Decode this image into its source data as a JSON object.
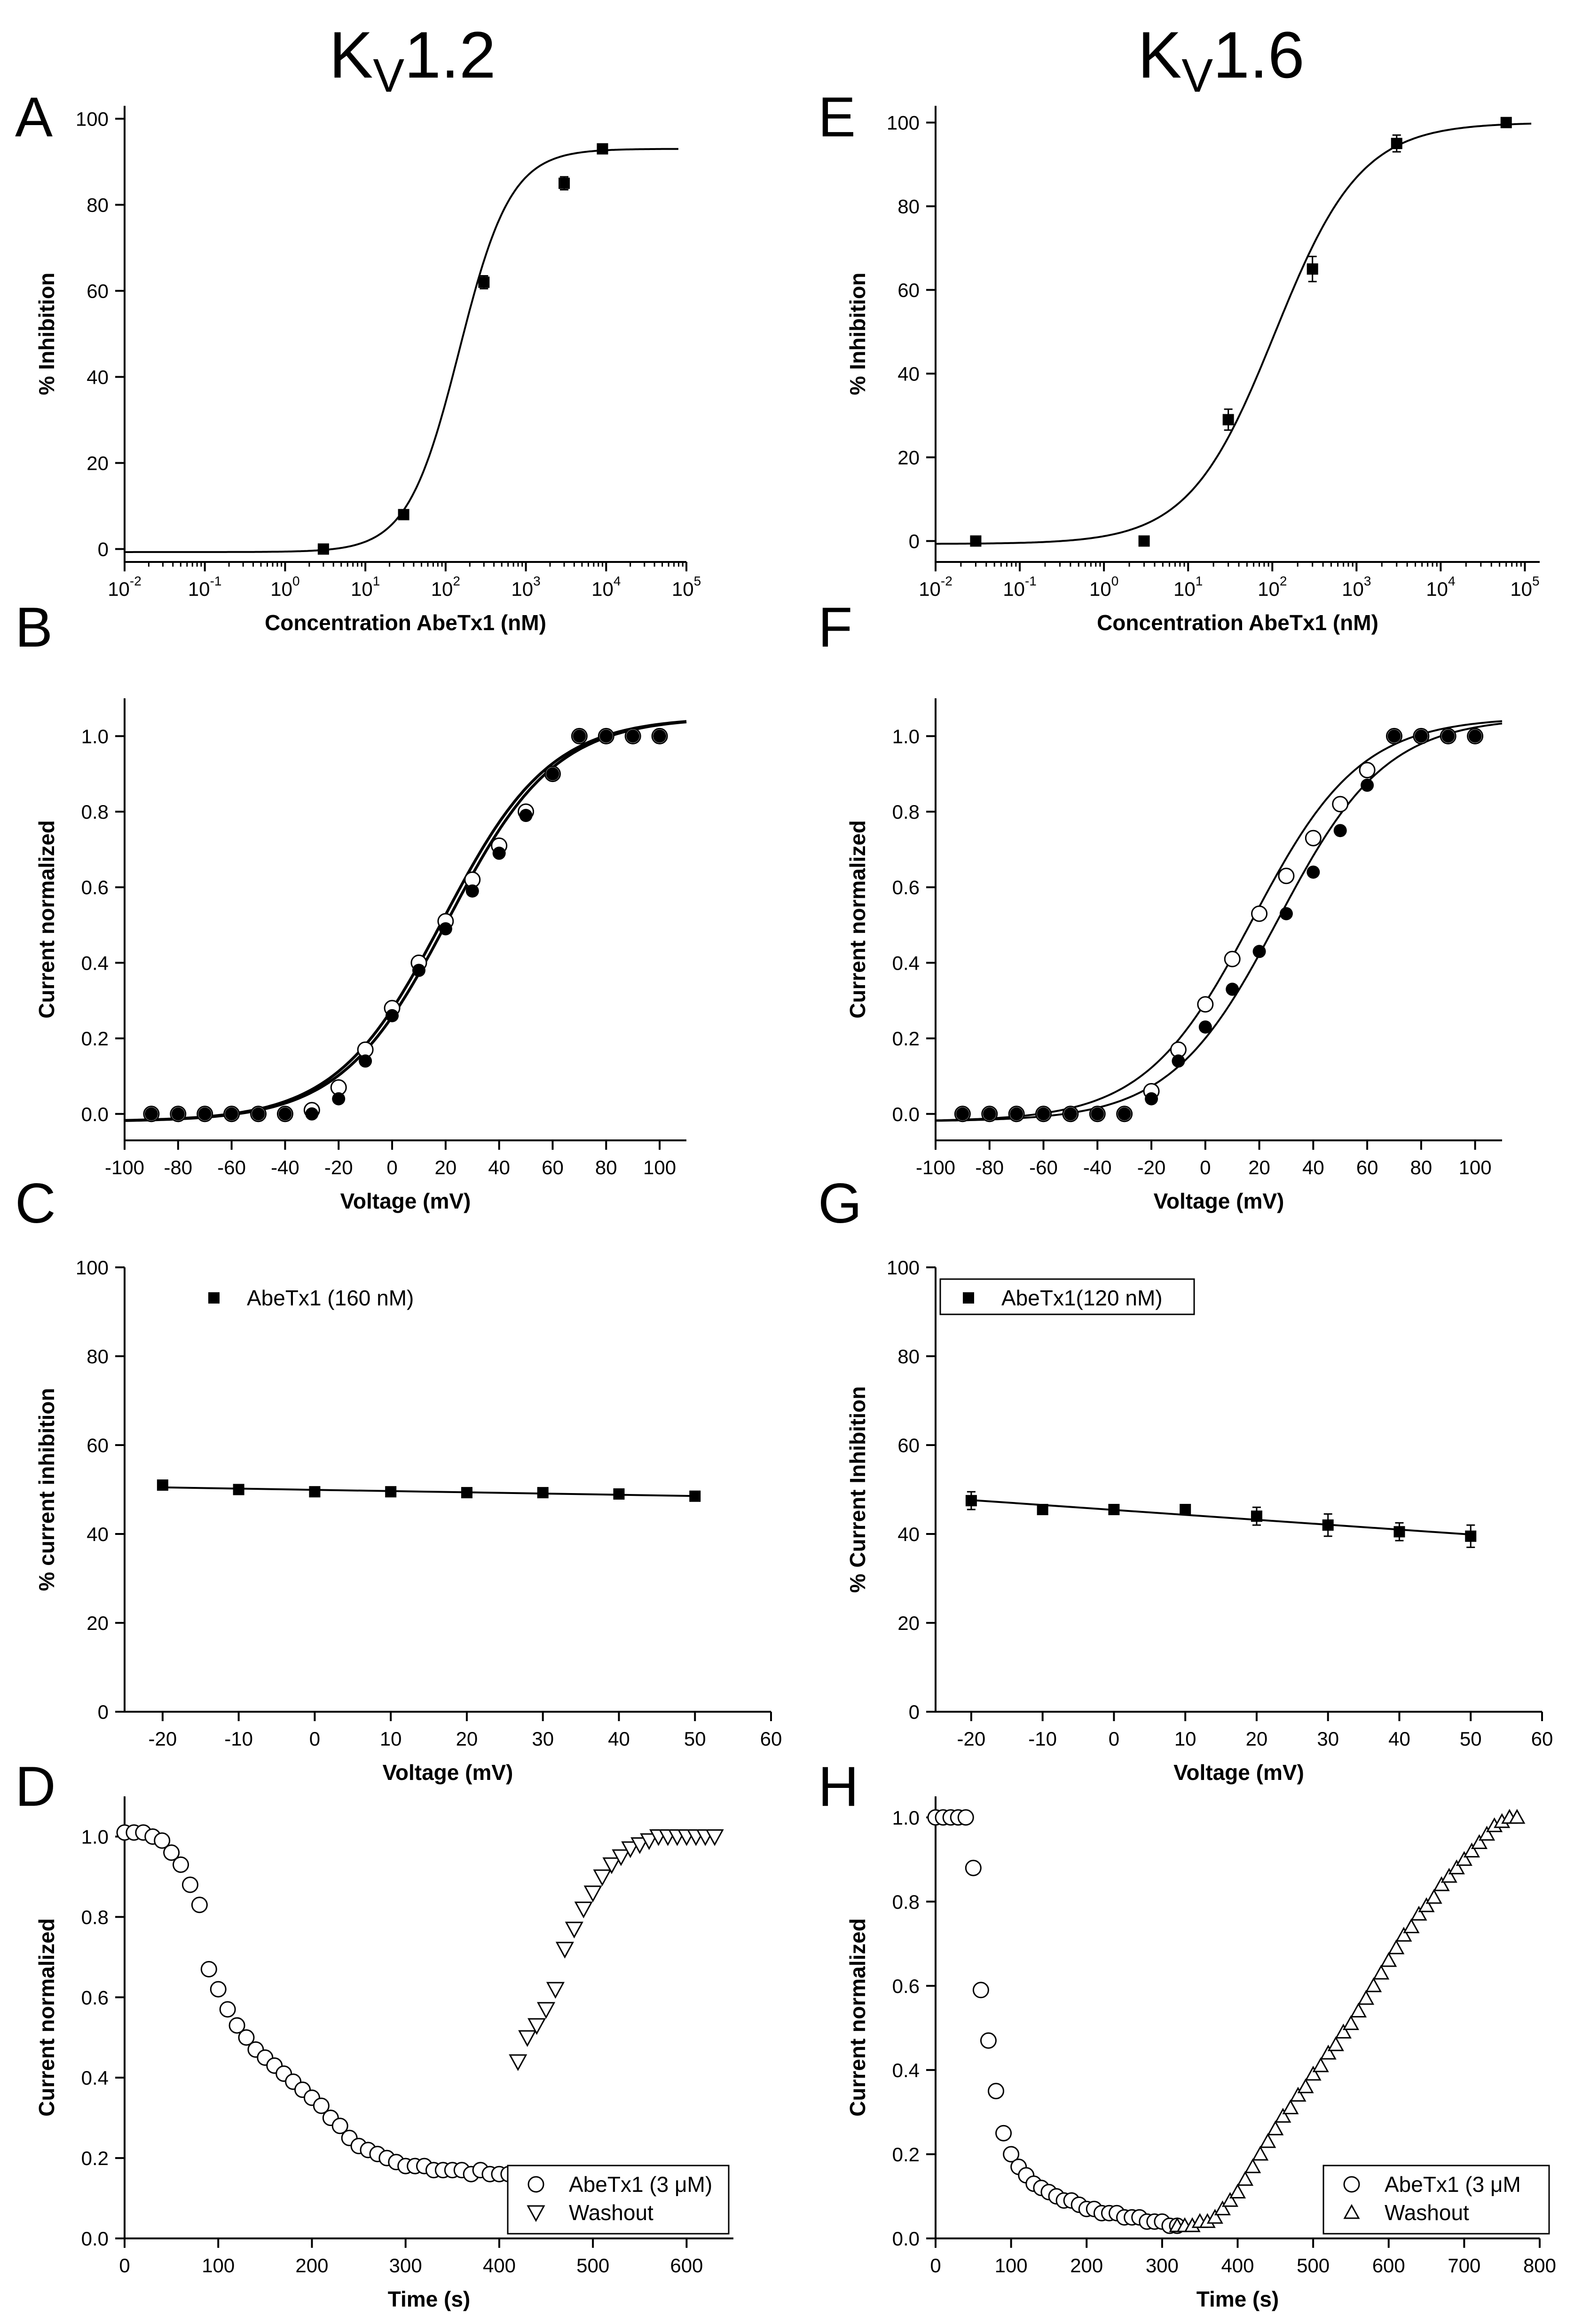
{
  "columns": [
    {
      "title": "K",
      "sub": "V",
      "suffix": "1.2"
    },
    {
      "title": "K",
      "sub": "V",
      "suffix": "1.6"
    }
  ],
  "colors": {
    "ink": "#000000",
    "background": "#ffffff"
  },
  "chart_data": [
    {
      "panel": "A",
      "type": "scatter",
      "xscale": "log",
      "xlabel": "Concentration AbeTx1 (nM)",
      "ylabel": "% Inhibition",
      "xlim": [
        0.01,
        100000
      ],
      "ylim": [
        -3,
        103
      ],
      "xticks": [
        {
          "b": "10",
          "e": "-2"
        },
        {
          "b": "10",
          "e": "-1"
        },
        {
          "b": "10",
          "e": "0"
        },
        {
          "b": "10",
          "e": "1"
        },
        {
          "b": "10",
          "e": "2"
        },
        {
          "b": "10",
          "e": "3"
        },
        {
          "b": "10",
          "e": "4"
        },
        {
          "b": "10",
          "e": "5"
        }
      ],
      "yticks": [
        "0",
        "20",
        "40",
        "60",
        "80",
        "100"
      ],
      "series": [
        {
          "name": "data",
          "marker": "filled-square",
          "fit": "hill",
          "x": [
            3,
            30,
            300,
            3000,
            9000
          ],
          "y": [
            0,
            8,
            62,
            85,
            93
          ],
          "err": [
            0.5,
            0.8,
            1.5,
            1.5,
            0.5
          ]
        }
      ]
    },
    {
      "panel": "B",
      "type": "scatter",
      "xlabel": "Voltage (mV)",
      "ylabel": "Current normalized",
      "xlim": [
        -100,
        110
      ],
      "ylim": [
        -0.07,
        1.1
      ],
      "xticks": [
        "-100",
        "-80",
        "-60",
        "-40",
        "-20",
        "0",
        "20",
        "40",
        "60",
        "80",
        "100"
      ],
      "yticks": [
        "0.0",
        "0.2",
        "0.4",
        "0.6",
        "0.8",
        "1.0"
      ],
      "series": [
        {
          "name": "control",
          "marker": "open-circle",
          "fit": "boltzmann",
          "x": [
            -90,
            -80,
            -70,
            -60,
            -50,
            -40,
            -30,
            -20,
            -10,
            0,
            10,
            20,
            30,
            40,
            50,
            60,
            70,
            80,
            90,
            100
          ],
          "y": [
            0.0,
            0.0,
            0.0,
            0.0,
            0.0,
            0.0,
            0.01,
            0.07,
            0.17,
            0.28,
            0.4,
            0.51,
            0.62,
            0.71,
            0.8,
            0.9,
            1.0,
            1.0,
            1.0,
            1.0
          ]
        },
        {
          "name": "toxin",
          "marker": "filled-circle",
          "fit": "boltzmann",
          "x": [
            -90,
            -80,
            -70,
            -60,
            -50,
            -40,
            -30,
            -20,
            -10,
            0,
            10,
            20,
            30,
            40,
            50,
            60,
            70,
            80,
            90,
            100
          ],
          "y": [
            0.0,
            0.0,
            0.0,
            0.0,
            0.0,
            0.0,
            0.0,
            0.04,
            0.14,
            0.26,
            0.38,
            0.49,
            0.59,
            0.69,
            0.79,
            0.9,
            1.0,
            1.0,
            1.0,
            1.0
          ]
        }
      ]
    },
    {
      "panel": "C",
      "type": "scatter",
      "xlabel": "Voltage (mV)",
      "ylabel": "% current inhibition",
      "xlim": [
        -25,
        60
      ],
      "ylim": [
        0,
        100
      ],
      "xticks": [
        "-20",
        "-10",
        "0",
        "10",
        "20",
        "30",
        "40",
        "50",
        "60"
      ],
      "yticks": [
        "0",
        "20",
        "40",
        "60",
        "80",
        "100"
      ],
      "legend": {
        "position": "top-left",
        "boxed": false,
        "entries": [
          "AbeTx1 (160 nM)"
        ]
      },
      "series": [
        {
          "name": "AbeTx1 (160 nM)",
          "marker": "filled-square",
          "fit": "linear",
          "x": [
            -20,
            -10,
            0,
            10,
            20,
            30,
            40,
            50
          ],
          "y": [
            51,
            50,
            49.5,
            49.5,
            49.3,
            49.3,
            49,
            48.5
          ]
        }
      ]
    },
    {
      "panel": "D",
      "type": "scatter",
      "xlabel": "Time (s)",
      "ylabel": "Current normalized",
      "xlim": [
        0,
        650
      ],
      "ylim": [
        0,
        1.1
      ],
      "xticks": [
        "0",
        "100",
        "200",
        "300",
        "400",
        "500",
        "600"
      ],
      "yticks": [
        "0.0",
        "0.2",
        "0.4",
        "0.6",
        "0.8",
        "1.0"
      ],
      "legend": {
        "position": "bottom-right",
        "boxed": true,
        "entries": [
          "AbeTx1 (3 μM)",
          "Washout"
        ]
      },
      "series": [
        {
          "name": "AbeTx1 (3 μM)",
          "marker": "open-circle",
          "x": [
            0,
            10,
            20,
            30,
            40,
            50,
            60,
            70,
            80,
            90,
            100,
            110,
            120,
            130,
            140,
            150,
            160,
            170,
            180,
            190,
            200,
            210,
            220,
            230,
            240,
            250,
            260,
            270,
            280,
            290,
            300,
            310,
            320,
            330,
            340,
            350,
            360,
            370,
            380,
            390,
            400,
            410
          ],
          "y": [
            1.01,
            1.01,
            1.01,
            1.0,
            0.99,
            0.96,
            0.93,
            0.88,
            0.83,
            0.67,
            0.62,
            0.57,
            0.53,
            0.5,
            0.47,
            0.45,
            0.43,
            0.41,
            0.39,
            0.37,
            0.35,
            0.33,
            0.3,
            0.28,
            0.25,
            0.23,
            0.22,
            0.21,
            0.2,
            0.19,
            0.18,
            0.18,
            0.18,
            0.17,
            0.17,
            0.17,
            0.17,
            0.16,
            0.17,
            0.16,
            0.16,
            0.16
          ]
        },
        {
          "name": "Washout",
          "marker": "open-triangle-down",
          "x": [
            420,
            430,
            440,
            450,
            460,
            470,
            480,
            490,
            500,
            510,
            520,
            530,
            540,
            550,
            560,
            570,
            580,
            590,
            600,
            610,
            620,
            630
          ],
          "y": [
            0.44,
            0.5,
            0.53,
            0.57,
            0.62,
            0.72,
            0.77,
            0.82,
            0.86,
            0.9,
            0.93,
            0.95,
            0.97,
            0.98,
            0.99,
            1.0,
            1.0,
            1.0,
            1.0,
            1.0,
            1.0,
            1.0
          ]
        }
      ]
    },
    {
      "panel": "E",
      "type": "scatter",
      "xscale": "log",
      "xlabel": "Concentration AbeTx1 (nM)",
      "ylabel": "% Inhibition",
      "xlim": [
        0.01,
        150000
      ],
      "ylim": [
        -5,
        104
      ],
      "xticks": [
        {
          "b": "10",
          "e": "-2"
        },
        {
          "b": "10",
          "e": "-1"
        },
        {
          "b": "10",
          "e": "0"
        },
        {
          "b": "10",
          "e": "1"
        },
        {
          "b": "10",
          "e": "2"
        },
        {
          "b": "10",
          "e": "3"
        },
        {
          "b": "10",
          "e": "4"
        },
        {
          "b": "10",
          "e": "5"
        }
      ],
      "yticks": [
        "0",
        "20",
        "40",
        "60",
        "80",
        "100"
      ],
      "series": [
        {
          "name": "data",
          "marker": "filled-square",
          "fit": "hill",
          "x": [
            0.03,
            3,
            30,
            300,
            3000,
            60000
          ],
          "y": [
            0,
            0,
            29,
            65,
            95,
            100
          ],
          "err": [
            0.5,
            0.5,
            2.5,
            3.0,
            2.0,
            0.5
          ]
        }
      ]
    },
    {
      "panel": "F",
      "type": "scatter",
      "xlabel": "Voltage (mV)",
      "ylabel": "Current normalized",
      "xlim": [
        -100,
        110
      ],
      "ylim": [
        -0.07,
        1.1
      ],
      "xticks": [
        "-100",
        "-80",
        "-60",
        "-40",
        "-20",
        "0",
        "20",
        "40",
        "60",
        "80",
        "100"
      ],
      "yticks": [
        "0.0",
        "0.2",
        "0.4",
        "0.6",
        "0.8",
        "1.0"
      ],
      "series": [
        {
          "name": "control",
          "marker": "open-circle",
          "fit": "boltzmann",
          "x": [
            -90,
            -80,
            -70,
            -60,
            -50,
            -40,
            -30,
            -20,
            -10,
            0,
            10,
            20,
            30,
            40,
            50,
            60,
            70,
            80,
            90,
            100
          ],
          "y": [
            0.0,
            0.0,
            0.0,
            0.0,
            0.0,
            0.0,
            0.0,
            0.06,
            0.17,
            0.29,
            0.41,
            0.53,
            0.63,
            0.73,
            0.82,
            0.91,
            1.0,
            1.0,
            1.0,
            1.0
          ]
        },
        {
          "name": "toxin",
          "marker": "filled-circle",
          "fit": "boltzmann",
          "x": [
            -90,
            -80,
            -70,
            -60,
            -50,
            -40,
            -30,
            -20,
            -10,
            0,
            10,
            20,
            30,
            40,
            50,
            60,
            70,
            80,
            90,
            100
          ],
          "y": [
            0.0,
            0.0,
            0.0,
            0.0,
            0.0,
            0.0,
            0.0,
            0.04,
            0.14,
            0.23,
            0.33,
            0.43,
            0.53,
            0.64,
            0.75,
            0.87,
            1.0,
            1.0,
            1.0,
            1.0
          ]
        }
      ]
    },
    {
      "panel": "G",
      "type": "scatter",
      "xlabel": "Voltage (mV)",
      "ylabel": "% Current Inhibition",
      "xlim": [
        -25,
        60
      ],
      "ylim": [
        0,
        100
      ],
      "xticks": [
        "-20",
        "-10",
        "0",
        "10",
        "20",
        "30",
        "40",
        "50",
        "60"
      ],
      "yticks": [
        "0",
        "20",
        "40",
        "60",
        "80",
        "100"
      ],
      "legend": {
        "position": "top-left",
        "boxed": true,
        "entries": [
          "AbeTx1(120 nM)"
        ]
      },
      "series": [
        {
          "name": "AbeTx1(120 nM)",
          "marker": "filled-square",
          "fit": "linear",
          "x": [
            -20,
            -10,
            0,
            10,
            20,
            30,
            40,
            50
          ],
          "y": [
            47.5,
            45.5,
            45.5,
            45.5,
            44,
            42,
            40.5,
            39.5
          ],
          "err": [
            2.0,
            0.5,
            0.5,
            1.0,
            2.0,
            2.5,
            2.0,
            2.5
          ]
        }
      ]
    },
    {
      "panel": "H",
      "type": "scatter",
      "xlabel": "Time (s)",
      "ylabel": "Current normalized",
      "xlim": [
        0,
        800
      ],
      "ylim": [
        0,
        1.05
      ],
      "xticks": [
        "0",
        "100",
        "200",
        "300",
        "400",
        "500",
        "600",
        "700",
        "800"
      ],
      "yticks": [
        "0.0",
        "0.2",
        "0.4",
        "0.6",
        "0.8",
        "1.0"
      ],
      "legend": {
        "position": "bottom-right",
        "boxed": true,
        "entries": [
          "AbeTx1 (3 μM",
          "Washout"
        ]
      },
      "series": [
        {
          "name": "AbeTx1 (3 μM",
          "marker": "open-circle",
          "x": [
            0,
            10,
            20,
            30,
            40,
            50,
            60,
            70,
            80,
            90,
            100,
            110,
            120,
            130,
            140,
            150,
            160,
            170,
            180,
            190,
            200,
            210,
            220,
            230,
            240,
            250,
            260,
            270,
            280,
            290,
            300,
            310,
            320
          ],
          "y": [
            1.0,
            1.0,
            1.0,
            1.0,
            1.0,
            0.88,
            0.59,
            0.47,
            0.35,
            0.25,
            0.2,
            0.17,
            0.15,
            0.13,
            0.12,
            0.11,
            0.1,
            0.09,
            0.09,
            0.08,
            0.07,
            0.07,
            0.06,
            0.06,
            0.06,
            0.05,
            0.05,
            0.05,
            0.04,
            0.04,
            0.04,
            0.03,
            0.03
          ]
        },
        {
          "name": "Washout",
          "marker": "open-triangle-up",
          "x": [
            320,
            330,
            340,
            350,
            360,
            370,
            380,
            390,
            400,
            410,
            420,
            430,
            440,
            450,
            460,
            470,
            480,
            490,
            500,
            510,
            520,
            530,
            540,
            550,
            560,
            570,
            580,
            590,
            600,
            610,
            620,
            630,
            640,
            650,
            660,
            670,
            680,
            690,
            700,
            710,
            720,
            730,
            740,
            750,
            760,
            770
          ],
          "y": [
            0.03,
            0.03,
            0.03,
            0.04,
            0.04,
            0.05,
            0.07,
            0.09,
            0.11,
            0.14,
            0.17,
            0.2,
            0.23,
            0.26,
            0.29,
            0.31,
            0.34,
            0.36,
            0.39,
            0.41,
            0.44,
            0.46,
            0.49,
            0.51,
            0.54,
            0.57,
            0.6,
            0.63,
            0.66,
            0.69,
            0.72,
            0.74,
            0.77,
            0.79,
            0.81,
            0.84,
            0.86,
            0.88,
            0.9,
            0.92,
            0.94,
            0.96,
            0.98,
            0.99,
            1.0,
            1.0
          ]
        }
      ]
    }
  ]
}
